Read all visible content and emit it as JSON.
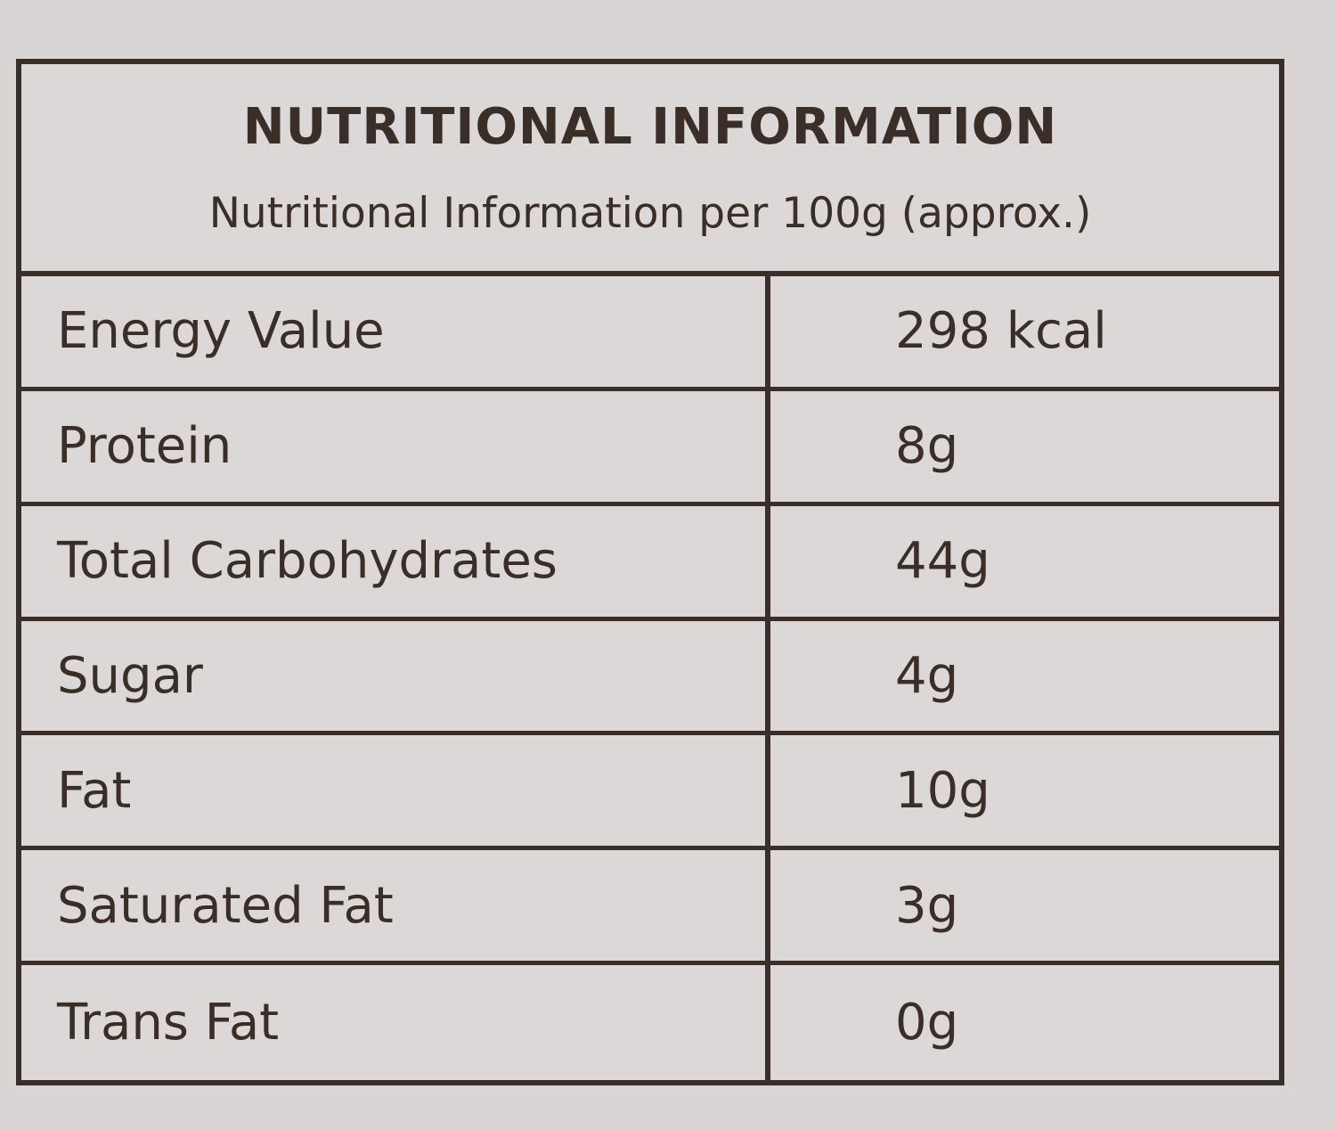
{
  "header": {
    "title": "NUTRITIONAL INFORMATION",
    "subtitle": "Nutritional Information per 100g (approx.)"
  },
  "table": {
    "rows": [
      [
        "Energy Value",
        "298 kcal"
      ],
      [
        "Protein",
        "8g"
      ],
      [
        "Total Carbohydrates",
        "44g"
      ],
      [
        "Sugar",
        "4g"
      ],
      [
        "Fat",
        "10g"
      ],
      [
        "Saturated Fat",
        "3g"
      ],
      [
        "Trans Fat",
        "0g"
      ]
    ]
  }
}
